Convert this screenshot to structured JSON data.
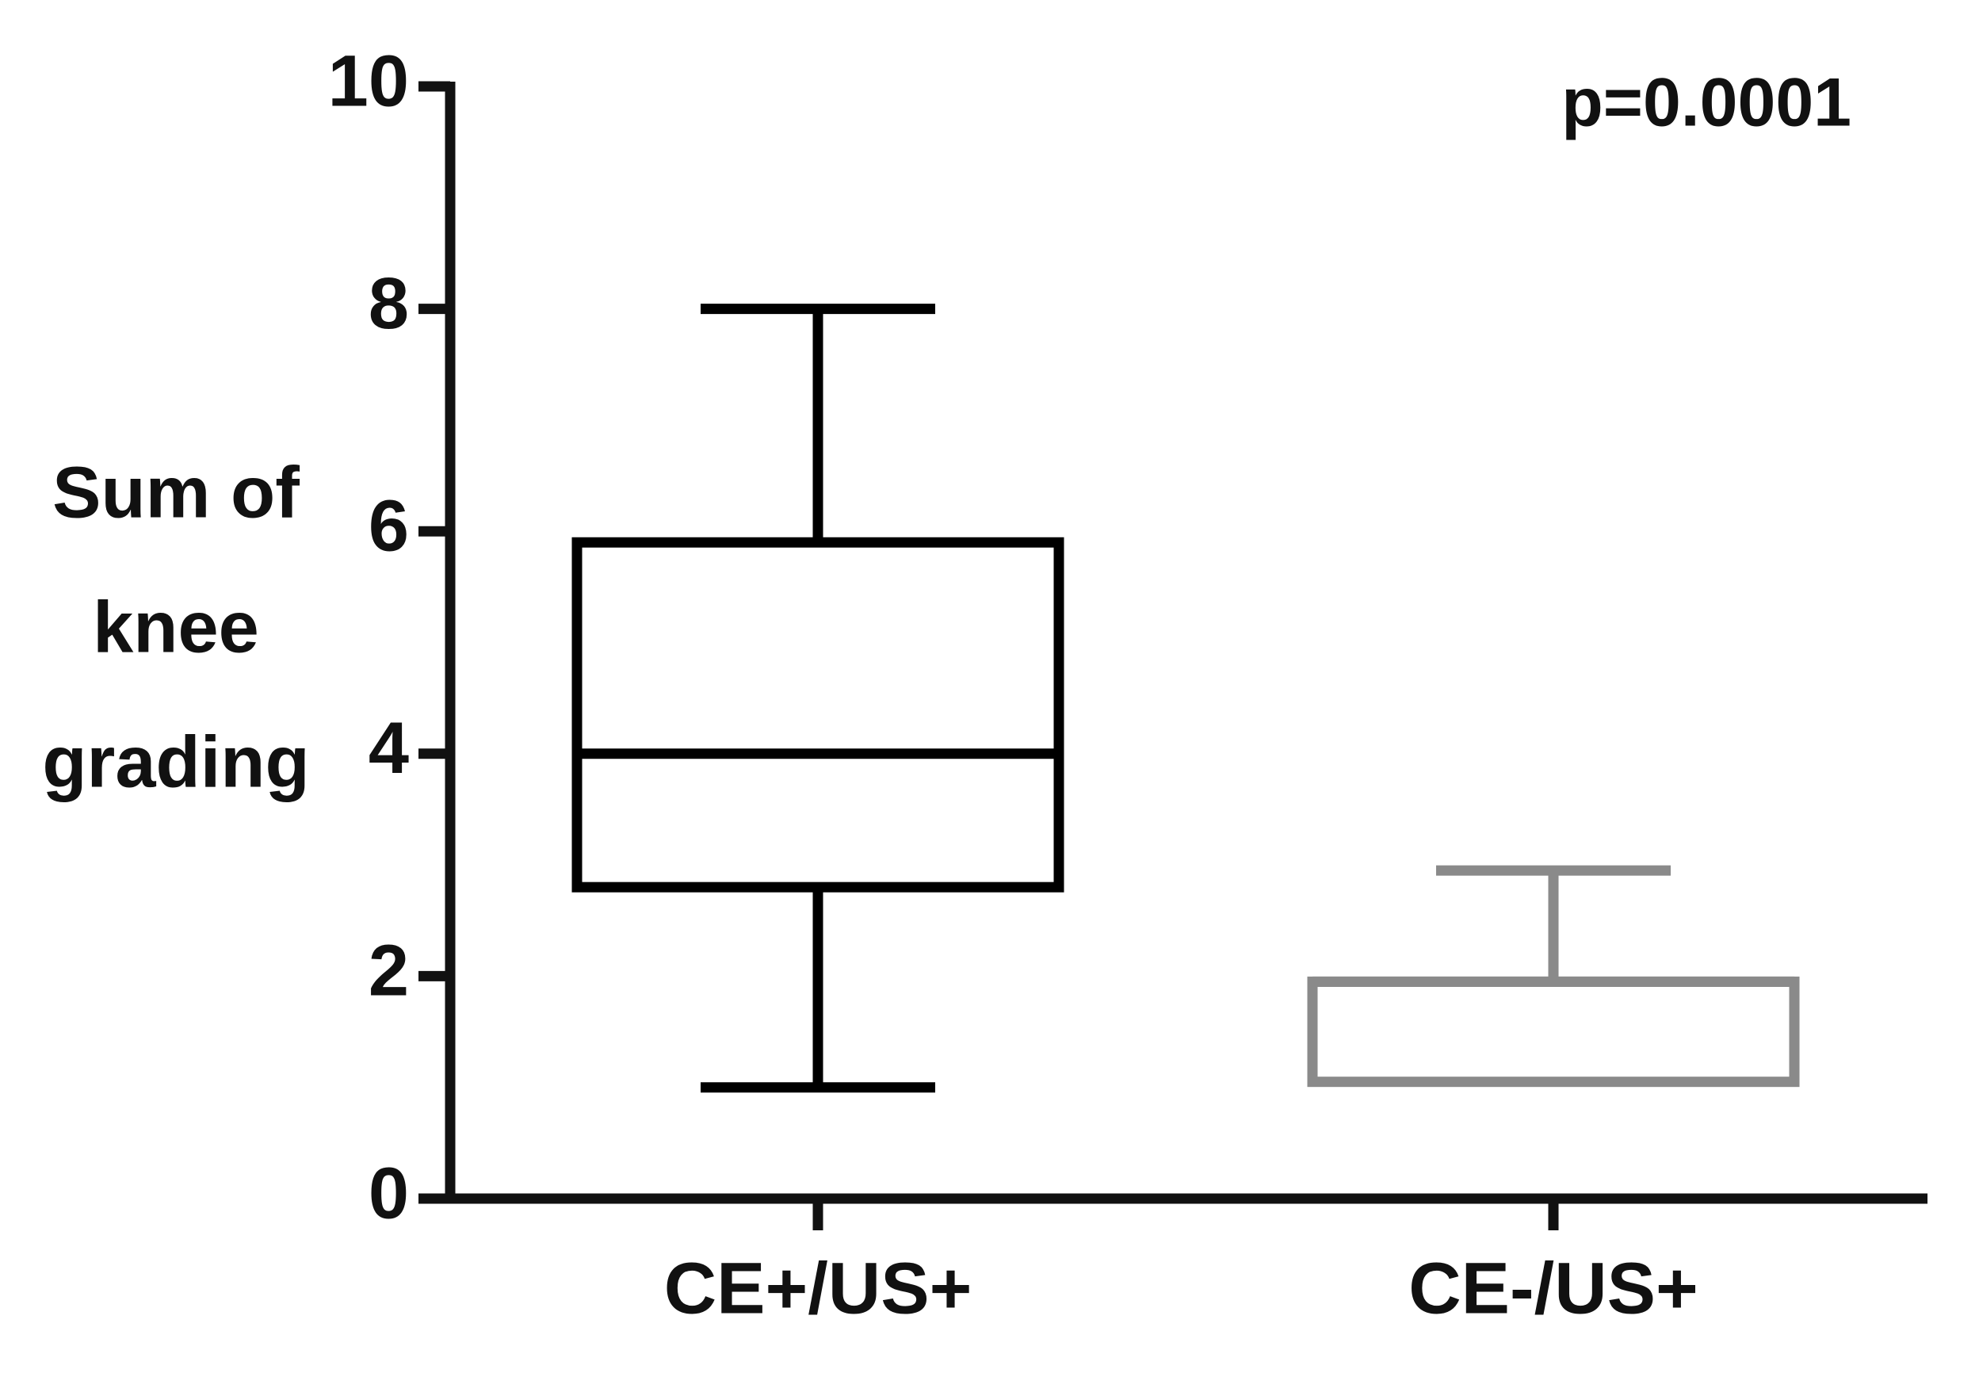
{
  "chart_data": {
    "type": "box",
    "y_label": [
      "Sum of",
      "knee",
      "grading"
    ],
    "annotation": "p=0.0001",
    "categories": [
      "CE+/US+",
      "CE-/US+"
    ],
    "series": [
      {
        "color": "#000000",
        "min": 1,
        "q1": 2.8,
        "median": 4,
        "q3": 5.9,
        "max": 8
      },
      {
        "color": "#8a8a8a",
        "min": 1.05,
        "q1": 1.05,
        "median": 1.95,
        "q3": 1.95,
        "max": 2.95
      }
    ],
    "ylim": [
      0,
      10
    ],
    "yticks": [
      0,
      2,
      4,
      6,
      8,
      10
    ]
  }
}
